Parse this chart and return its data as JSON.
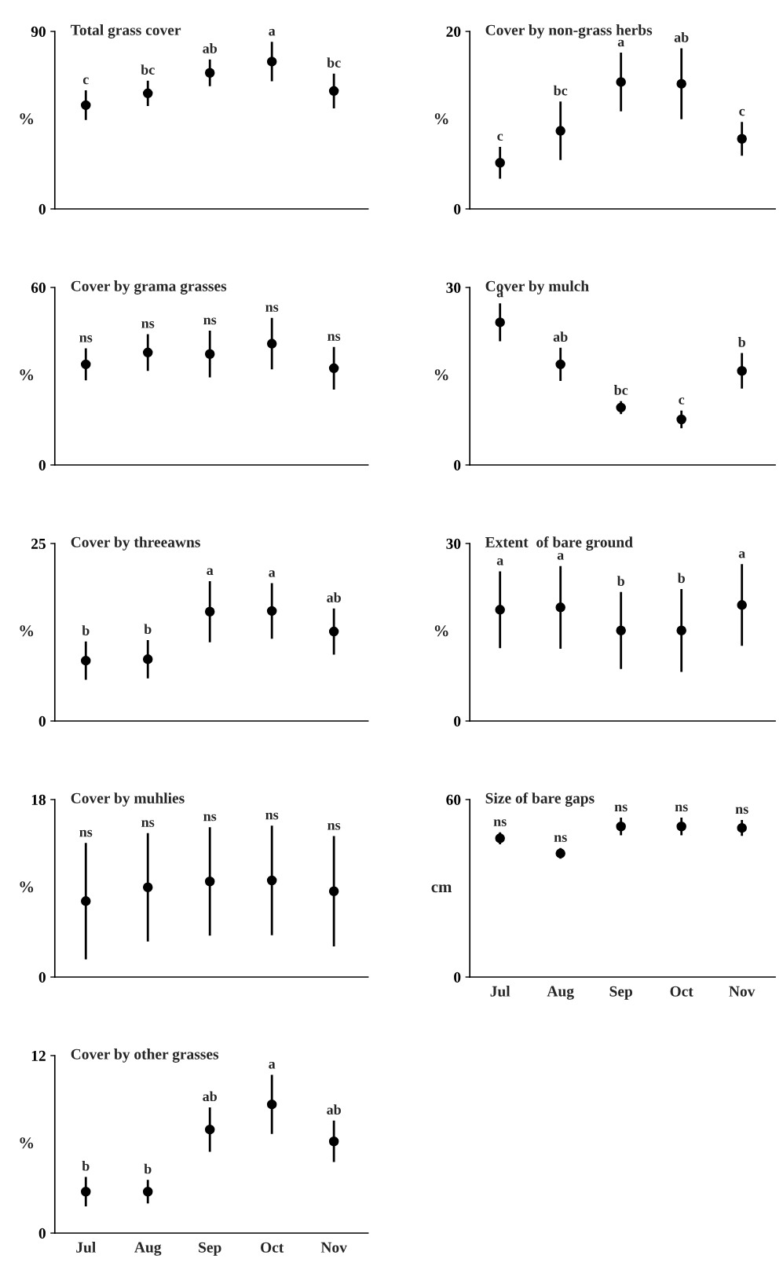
{
  "chart_data": [
    {
      "type": "scatter",
      "title": "Total grass cover",
      "ylabel": "%",
      "categories": [
        null,
        null,
        null,
        null,
        null
      ],
      "ylim": [
        0,
        90
      ],
      "yticks": [
        0,
        90
      ],
      "tick_labels": "y",
      "marker": "circle",
      "grid": false,
      "legend": false,
      "series": [
        {
          "color": "#000000",
          "values": [
            52.6,
            58.6,
            69,
            74.7,
            59.8
          ],
          "errors": [
            7.5,
            6.4,
            6.8,
            10,
            8.8
          ]
        }
      ],
      "annotations": [
        "c",
        "bc",
        "ab",
        "a",
        "bc"
      ]
    },
    {
      "type": "scatter",
      "title": "Cover by non-grass herbs",
      "ylabel": "%",
      "categories": [
        null,
        null,
        null,
        null,
        null
      ],
      "ylim": [
        0,
        20
      ],
      "yticks": [
        0,
        20
      ],
      "tick_labels": "y",
      "marker": "circle",
      "grid": false,
      "legend": false,
      "series": [
        {
          "color": "#000000",
          "values": [
            5.2,
            8.8,
            14.3,
            14.1,
            7.9
          ],
          "errors": [
            1.8,
            3.3,
            3.3,
            4,
            1.9
          ]
        }
      ],
      "annotations": [
        "c",
        "bc",
        "a",
        "ab",
        "c"
      ]
    },
    {
      "type": "scatter",
      "title": "Cover by grama grasses",
      "ylabel": "%",
      "categories": [
        null,
        null,
        null,
        null,
        null
      ],
      "ylim": [
        0,
        60
      ],
      "yticks": [
        0,
        60
      ],
      "tick_labels": "y",
      "marker": "circle",
      "grid": false,
      "legend": false,
      "series": [
        {
          "color": "#000000",
          "values": [
            34,
            38,
            37.5,
            41,
            32.7
          ],
          "errors": [
            5.4,
            6.2,
            7.9,
            8.7,
            7.2
          ]
        }
      ],
      "annotations": [
        "ns",
        "ns",
        "ns",
        "ns",
        "ns"
      ]
    },
    {
      "type": "scatter",
      "title": "Cover by mulch",
      "ylabel": "%",
      "categories": [
        null,
        null,
        null,
        null,
        null
      ],
      "ylim": [
        0,
        30
      ],
      "yticks": [
        0,
        30
      ],
      "tick_labels": "y",
      "marker": "circle",
      "grid": false,
      "legend": false,
      "series": [
        {
          "color": "#000000",
          "values": [
            24.1,
            17,
            9.7,
            7.7,
            15.9
          ],
          "errors": [
            3.2,
            2.8,
            1.1,
            1.5,
            3
          ]
        }
      ],
      "annotations": [
        "a",
        "ab",
        "bc",
        "c",
        "b"
      ]
    },
    {
      "type": "scatter",
      "title": "Cover by threeawns",
      "ylabel": "%",
      "categories": [
        null,
        null,
        null,
        null,
        null
      ],
      "ylim": [
        0,
        25
      ],
      "yticks": [
        0,
        25
      ],
      "tick_labels": "y",
      "marker": "circle",
      "grid": false,
      "legend": false,
      "series": [
        {
          "color": "#000000",
          "values": [
            8.5,
            8.7,
            15.4,
            15.5,
            12.6
          ],
          "errors": [
            2.7,
            2.7,
            4.3,
            3.9,
            3.25
          ]
        }
      ],
      "annotations": [
        "b",
        "b",
        "a",
        "a",
        "ab"
      ]
    },
    {
      "type": "scatter",
      "title": "Extent  of bare ground",
      "ylabel": "%",
      "categories": [
        null,
        null,
        null,
        null,
        null
      ],
      "ylim": [
        0,
        30
      ],
      "yticks": [
        0,
        30
      ],
      "tick_labels": "y",
      "marker": "circle",
      "grid": false,
      "legend": false,
      "series": [
        {
          "color": "#000000",
          "values": [
            18.8,
            19.2,
            15.3,
            15.3,
            19.6
          ],
          "errors": [
            6.5,
            7,
            6.5,
            7,
            6.9
          ]
        }
      ],
      "annotations": [
        "a",
        "a",
        "b",
        "b",
        "a"
      ]
    },
    {
      "type": "scatter",
      "title": "Cover by muhlies",
      "ylabel": "%",
      "categories": [
        null,
        null,
        null,
        null,
        null
      ],
      "ylim": [
        0,
        18
      ],
      "yticks": [
        0,
        18
      ],
      "tick_labels": "y",
      "marker": "circle",
      "grid": false,
      "legend": false,
      "series": [
        {
          "color": "#000000",
          "values": [
            7.7,
            9.1,
            9.7,
            9.8,
            8.7
          ],
          "errors": [
            5.9,
            5.5,
            5.5,
            5.55,
            5.6
          ]
        }
      ],
      "annotations": [
        "ns",
        "ns",
        "ns",
        "ns",
        "ns"
      ]
    },
    {
      "type": "scatter",
      "title": "Size of bare gaps",
      "ylabel": "cm",
      "categories": [
        "Jul",
        "Aug",
        "Sep",
        "Oct",
        "Nov"
      ],
      "ylim": [
        0,
        60
      ],
      "yticks": [
        0,
        60
      ],
      "marker": "circle",
      "grid": false,
      "legend": false,
      "series": [
        {
          "color": "#000000",
          "values": [
            46.9,
            41.8,
            50.9,
            50.9,
            50.4
          ],
          "errors": [
            2,
            1.8,
            3,
            3,
            2.7
          ]
        }
      ],
      "annotations": [
        "ns",
        "ns",
        "ns",
        "ns",
        "ns"
      ]
    },
    {
      "type": "scatter",
      "title": "Cover by other grasses",
      "ylabel": "%",
      "categories": [
        "Jul",
        "Aug",
        "Sep",
        "Oct",
        "Nov"
      ],
      "ylim": [
        0,
        12
      ],
      "yticks": [
        0,
        12
      ],
      "marker": "circle",
      "grid": false,
      "legend": false,
      "series": [
        {
          "color": "#000000",
          "values": [
            2.8,
            2.8,
            7,
            8.7,
            6.2
          ],
          "errors": [
            1,
            0.8,
            1.5,
            2,
            1.4
          ]
        }
      ],
      "annotations": [
        "b",
        "b",
        "ab",
        "a",
        "ab"
      ]
    }
  ]
}
